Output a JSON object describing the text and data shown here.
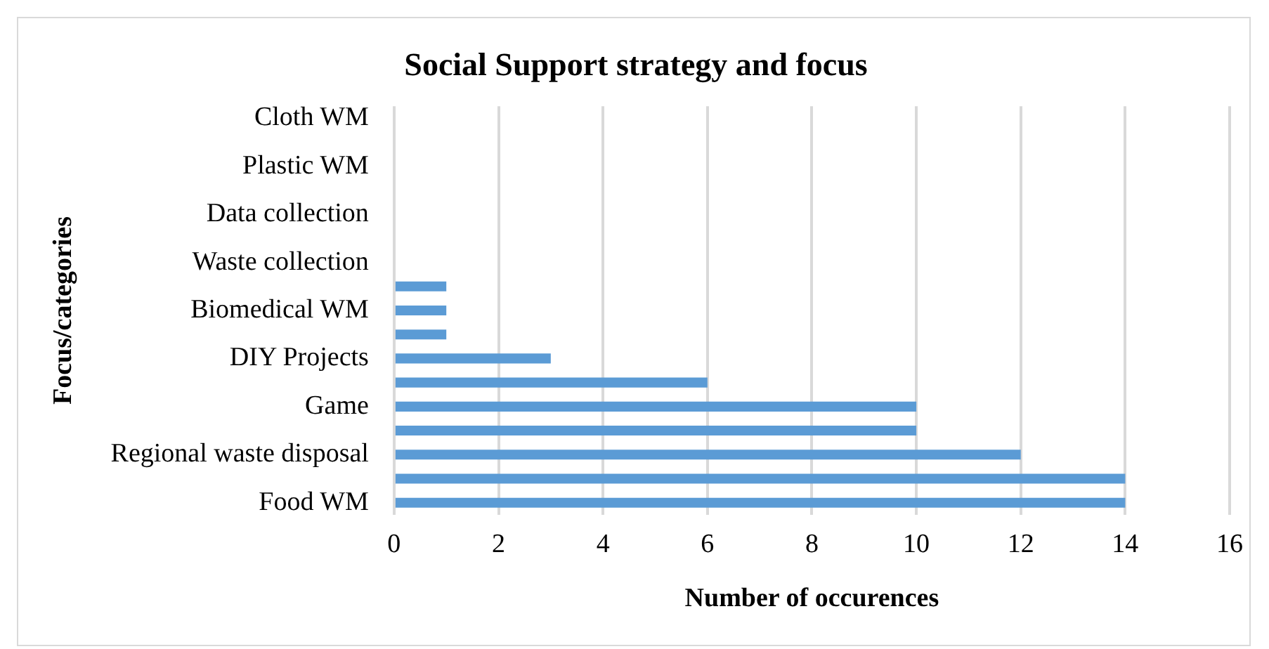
{
  "chart_data": {
    "type": "bar",
    "orientation": "horizontal",
    "title": "Social Support strategy and focus",
    "xlabel": "Number of occurences",
    "ylabel": "Focus/categories",
    "categories": [
      "Cloth WM",
      null,
      "Plastic WM",
      null,
      "Data collection",
      null,
      "Waste collection",
      null,
      "Biomedical WM",
      null,
      "DIY Projects",
      null,
      "Game",
      null,
      "Regional waste disposal",
      null,
      "Food WM"
    ],
    "values": [
      0,
      0,
      0,
      0,
      0,
      0,
      0,
      1,
      1,
      1,
      3,
      6,
      10,
      10,
      12,
      14,
      14
    ],
    "color": "#5b9bd5",
    "xlim": [
      0,
      16
    ],
    "xticks": [
      0,
      2,
      4,
      6,
      8,
      10,
      12,
      14,
      16
    ],
    "grid": "x",
    "legend": false
  }
}
